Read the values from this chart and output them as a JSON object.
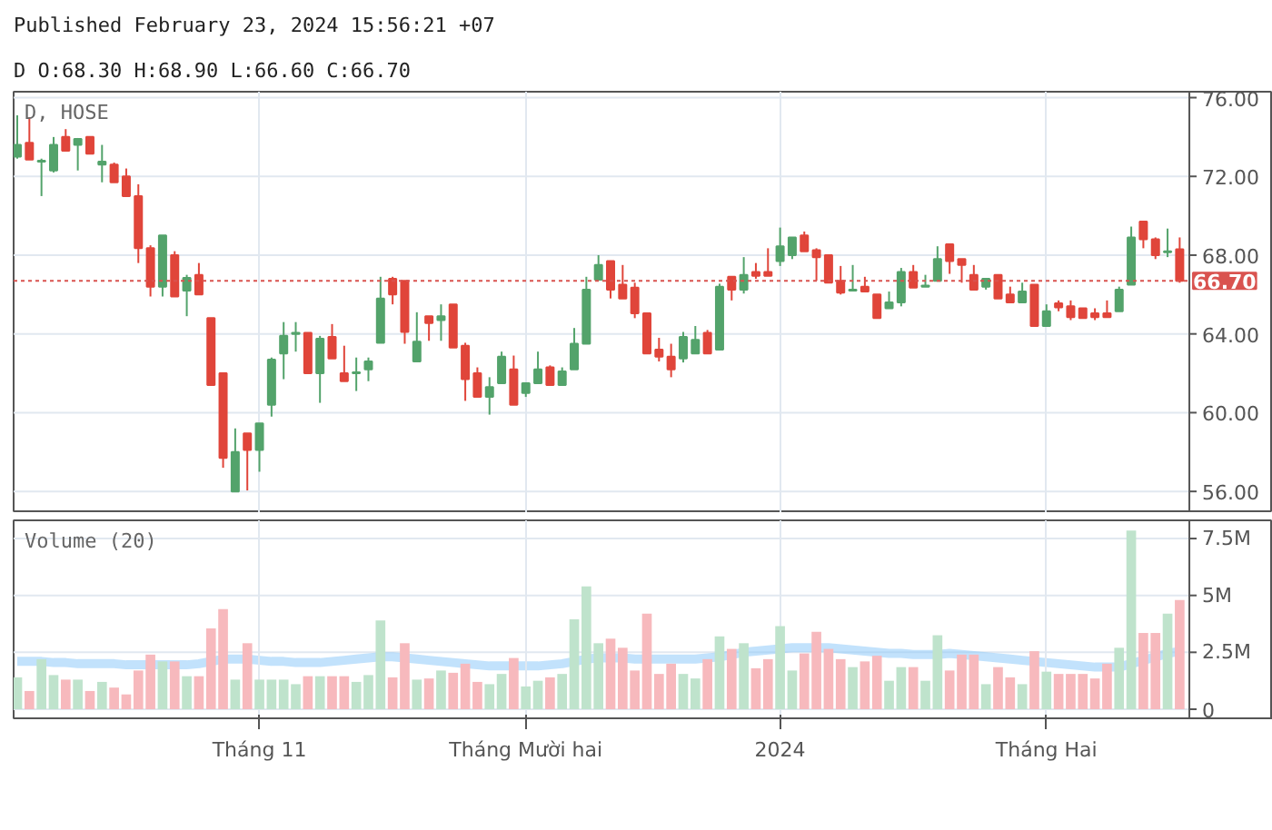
{
  "chart_data": [
    {
      "type": "candlestick",
      "title": "Published February 23, 2024 15:56:21 +07",
      "subtitle": "D O:68.30 H:68.90 L:66.60 C:66.70",
      "annotations": [
        "D, HOSE"
      ],
      "categories": [
        null,
        null,
        null,
        null,
        null,
        null,
        null,
        null,
        null,
        null,
        null,
        null,
        null,
        null,
        null,
        null,
        null,
        null,
        null,
        null,
        "Tháng 11",
        null,
        null,
        null,
        null,
        null,
        null,
        null,
        null,
        null,
        null,
        null,
        null,
        null,
        null,
        null,
        null,
        null,
        null,
        null,
        null,
        null,
        "Tháng Mười hai",
        null,
        null,
        null,
        null,
        null,
        null,
        null,
        null,
        null,
        null,
        null,
        null,
        null,
        null,
        null,
        null,
        null,
        null,
        null,
        null,
        "2024",
        null,
        null,
        null,
        null,
        null,
        null,
        null,
        null,
        null,
        null,
        null,
        null,
        null,
        null,
        null,
        null,
        null,
        null,
        null,
        null,
        null,
        "Tháng Hai",
        null,
        null,
        null,
        null,
        null,
        null,
        null,
        null,
        null,
        null,
        null
      ],
      "ohlc": [
        [
          73.0,
          75.1,
          72.9,
          73.6
        ],
        [
          73.7,
          75.0,
          72.85,
          72.85
        ],
        [
          72.75,
          72.9,
          71.0,
          72.8
        ],
        [
          72.3,
          74.0,
          72.2,
          73.6
        ],
        [
          74.0,
          74.4,
          73.3,
          73.3
        ],
        [
          73.6,
          73.95,
          72.3,
          73.9
        ],
        [
          74.0,
          74.0,
          73.15,
          73.15
        ],
        [
          72.6,
          73.6,
          71.7,
          72.75
        ],
        [
          72.6,
          72.7,
          71.7,
          71.7
        ],
        [
          72.0,
          72.4,
          71.0,
          71.0
        ],
        [
          71.0,
          71.6,
          67.6,
          68.35
        ],
        [
          68.35,
          68.5,
          65.9,
          66.4
        ],
        [
          66.4,
          69.0,
          65.9,
          69.0
        ],
        [
          68.0,
          68.2,
          65.9,
          65.9
        ],
        [
          66.2,
          67.0,
          64.9,
          66.85
        ],
        [
          67.0,
          67.6,
          66.0,
          66.0
        ],
        [
          64.8,
          64.8,
          61.4,
          61.4
        ],
        [
          62.0,
          62.0,
          57.2,
          57.7
        ],
        [
          56.0,
          59.2,
          56.0,
          58.0
        ],
        [
          58.95,
          58.95,
          56.05,
          58.1
        ],
        [
          58.1,
          59.45,
          57.0,
          59.45
        ],
        [
          60.4,
          62.8,
          59.8,
          62.7
        ],
        [
          63.0,
          64.6,
          61.7,
          63.9
        ],
        [
          64.0,
          64.6,
          63.1,
          64.05
        ],
        [
          64.05,
          64.05,
          62.0,
          62.0
        ],
        [
          62.0,
          63.9,
          60.5,
          63.75
        ],
        [
          63.85,
          64.5,
          62.75,
          62.75
        ],
        [
          62.0,
          63.4,
          61.6,
          61.6
        ],
        [
          62.0,
          62.8,
          61.1,
          62.05
        ],
        [
          62.2,
          62.8,
          61.6,
          62.6
        ],
        [
          63.55,
          66.9,
          63.55,
          65.8
        ],
        [
          66.8,
          66.9,
          65.5,
          66.0
        ],
        [
          66.7,
          66.7,
          63.5,
          64.1
        ],
        [
          62.6,
          65.1,
          62.6,
          63.6
        ],
        [
          64.9,
          64.9,
          63.65,
          64.55
        ],
        [
          64.7,
          65.5,
          63.65,
          64.9
        ],
        [
          65.5,
          65.5,
          63.3,
          63.3
        ],
        [
          63.4,
          63.55,
          60.6,
          61.7
        ],
        [
          62.0,
          62.3,
          60.8,
          60.8
        ],
        [
          60.8,
          61.8,
          59.9,
          61.3
        ],
        [
          61.5,
          63.1,
          61.5,
          62.85
        ],
        [
          62.2,
          62.9,
          60.4,
          60.4
        ],
        [
          61.0,
          61.5,
          60.8,
          61.5
        ],
        [
          61.5,
          63.1,
          61.5,
          62.2
        ],
        [
          62.3,
          62.4,
          61.4,
          61.4
        ],
        [
          61.4,
          62.3,
          61.4,
          62.1
        ],
        [
          62.2,
          64.3,
          62.2,
          63.5
        ],
        [
          63.5,
          66.9,
          63.5,
          66.25
        ],
        [
          66.75,
          68.0,
          66.75,
          67.5
        ],
        [
          67.7,
          67.7,
          65.8,
          66.25
        ],
        [
          66.5,
          67.5,
          65.8,
          65.8
        ],
        [
          66.35,
          66.6,
          64.8,
          65.05
        ],
        [
          65.05,
          65.05,
          63.0,
          63.0
        ],
        [
          63.2,
          63.8,
          62.6,
          62.85
        ],
        [
          62.85,
          63.5,
          61.8,
          62.2
        ],
        [
          62.75,
          64.1,
          62.55,
          63.85
        ],
        [
          63.0,
          64.4,
          63.0,
          63.7
        ],
        [
          64.05,
          64.2,
          63.0,
          63.0
        ],
        [
          63.2,
          66.55,
          63.2,
          66.4
        ],
        [
          66.9,
          66.9,
          65.7,
          66.25
        ],
        [
          66.25,
          67.9,
          66.05,
          67.0
        ],
        [
          67.15,
          67.6,
          66.8,
          66.95
        ],
        [
          67.15,
          68.35,
          66.95,
          66.95
        ],
        [
          67.7,
          69.4,
          67.45,
          68.45
        ],
        [
          68.0,
          68.9,
          67.8,
          68.9
        ],
        [
          69.0,
          69.2,
          68.2,
          68.2
        ],
        [
          68.25,
          68.35,
          66.7,
          67.9
        ],
        [
          68.0,
          68.0,
          66.6,
          66.6
        ],
        [
          66.7,
          67.45,
          66.0,
          66.1
        ],
        [
          66.2,
          67.5,
          66.2,
          66.25
        ],
        [
          66.4,
          66.9,
          66.15,
          66.15
        ],
        [
          66.0,
          66.0,
          64.8,
          64.8
        ],
        [
          65.3,
          66.15,
          65.3,
          65.6
        ],
        [
          65.6,
          67.35,
          65.4,
          67.15
        ],
        [
          67.15,
          67.5,
          66.35,
          66.35
        ],
        [
          66.4,
          67.0,
          66.4,
          66.45
        ],
        [
          66.7,
          68.45,
          66.7,
          67.8
        ],
        [
          68.55,
          68.55,
          67.05,
          67.7
        ],
        [
          67.8,
          67.8,
          66.6,
          67.5
        ],
        [
          67.0,
          67.5,
          66.25,
          66.25
        ],
        [
          66.4,
          66.8,
          66.25,
          66.8
        ],
        [
          67.0,
          67.0,
          65.8,
          65.8
        ],
        [
          66.0,
          66.4,
          65.6,
          65.6
        ],
        [
          65.6,
          66.6,
          65.6,
          66.15
        ],
        [
          66.5,
          66.5,
          64.4,
          64.4
        ],
        [
          64.4,
          65.5,
          64.4,
          65.15
        ],
        [
          65.55,
          65.7,
          65.15,
          65.35
        ],
        [
          65.4,
          65.7,
          64.7,
          64.85
        ],
        [
          65.3,
          65.3,
          64.8,
          64.8
        ],
        [
          65.05,
          65.3,
          64.7,
          64.85
        ],
        [
          65.05,
          65.7,
          64.85,
          64.85
        ],
        [
          65.15,
          66.4,
          65.15,
          66.25
        ],
        [
          66.5,
          69.45,
          66.5,
          68.9
        ],
        [
          69.7,
          69.7,
          68.35,
          68.8
        ],
        [
          68.8,
          68.9,
          67.8,
          68.0
        ],
        [
          68.15,
          69.35,
          67.9,
          68.2
        ],
        [
          68.3,
          68.9,
          66.6,
          66.7
        ]
      ],
      "colors": [
        "#53a36b",
        "#e0453a",
        "#53a36b",
        "#53a36b",
        "#e0453a",
        "#53a36b",
        "#e0453a",
        "#53a36b",
        "#e0453a",
        "#e0453a",
        "#e0453a",
        "#e0453a",
        "#53a36b",
        "#e0453a",
        "#53a36b",
        "#e0453a",
        "#e0453a",
        "#e0453a",
        "#53a36b",
        "#e0453a",
        "#53a36b",
        "#53a36b",
        "#53a36b",
        "#53a36b",
        "#e0453a",
        "#53a36b",
        "#e0453a",
        "#e0453a",
        "#53a36b",
        "#53a36b",
        "#53a36b",
        "#e0453a",
        "#e0453a",
        "#53a36b",
        "#e0453a",
        "#53a36b",
        "#e0453a",
        "#e0453a",
        "#e0453a",
        "#53a36b",
        "#53a36b",
        "#e0453a",
        "#53a36b",
        "#53a36b",
        "#e0453a",
        "#53a36b",
        "#53a36b",
        "#53a36b",
        "#53a36b",
        "#e0453a",
        "#e0453a",
        "#e0453a",
        "#e0453a",
        "#e0453a",
        "#e0453a",
        "#53a36b",
        "#53a36b",
        "#e0453a",
        "#53a36b",
        "#e0453a",
        "#53a36b",
        "#e0453a",
        "#e0453a",
        "#53a36b",
        "#53a36b",
        "#e0453a",
        "#e0453a",
        "#e0453a",
        "#e0453a",
        "#53a36b",
        "#e0453a",
        "#e0453a",
        "#53a36b",
        "#53a36b",
        "#e0453a",
        "#53a36b",
        "#53a36b",
        "#e0453a",
        "#e0453a",
        "#e0453a",
        "#53a36b",
        "#e0453a",
        "#e0453a",
        "#53a36b",
        "#e0453a",
        "#53a36b",
        "#e0453a",
        "#e0453a",
        "#e0453a",
        "#e0453a",
        "#e0453a",
        "#53a36b",
        "#53a36b",
        "#e0453a",
        "#e0453a",
        "#53a36b",
        "#e0453a"
      ],
      "ylim": [
        54.9,
        76.3
      ],
      "yticks": [
        {
          "value": 56,
          "label": "56.00"
        },
        {
          "value": 60,
          "label": "60.00"
        },
        {
          "value": 64,
          "label": "64.00"
        },
        {
          "value": 68,
          "label": "68.00"
        },
        {
          "value": 72,
          "label": "72.00"
        },
        {
          "value": 76,
          "label": "76.00"
        }
      ],
      "ref_lines": [
        {
          "axis": "y",
          "value": 66.7,
          "label": "66.70",
          "color": "#d9534f",
          "line_style": "dotted"
        }
      ],
      "grid": true,
      "tick_labels": "y"
    },
    {
      "type": "bar",
      "annotations": [
        "Volume (20)"
      ],
      "categories": [
        null,
        null,
        null,
        null,
        null,
        null,
        null,
        null,
        null,
        null,
        null,
        null,
        null,
        null,
        null,
        null,
        null,
        null,
        null,
        null,
        "Tháng 11",
        null,
        null,
        null,
        null,
        null,
        null,
        null,
        null,
        null,
        null,
        null,
        null,
        null,
        null,
        null,
        null,
        null,
        null,
        null,
        null,
        null,
        "Tháng Mười hai",
        null,
        null,
        null,
        null,
        null,
        null,
        null,
        null,
        null,
        null,
        null,
        null,
        null,
        null,
        null,
        null,
        null,
        null,
        null,
        null,
        "2024",
        null,
        null,
        null,
        null,
        null,
        null,
        null,
        null,
        null,
        null,
        null,
        null,
        null,
        null,
        null,
        null,
        null,
        null,
        null,
        null,
        null,
        "Tháng Hai",
        null,
        null,
        null,
        null,
        null,
        null,
        null,
        null,
        null,
        null,
        null
      ],
      "series": [
        {
          "type": "bar",
          "values": [
            1.4,
            0.8,
            2.2,
            1.5,
            1.3,
            1.3,
            0.8,
            1.2,
            0.95,
            0.65,
            1.7,
            2.4,
            2.1,
            2.1,
            1.45,
            1.45,
            3.55,
            4.4,
            1.3,
            2.9,
            1.3,
            1.3,
            1.3,
            1.1,
            1.45,
            1.45,
            1.45,
            1.45,
            1.2,
            1.5,
            3.9,
            1.4,
            2.9,
            1.3,
            1.35,
            1.7,
            1.6,
            2.0,
            1.2,
            1.1,
            1.55,
            2.25,
            1.0,
            1.25,
            1.4,
            1.55,
            3.95,
            5.4,
            2.9,
            3.1,
            2.7,
            1.7,
            4.2,
            1.55,
            2.0,
            1.55,
            1.35,
            2.2,
            3.2,
            2.65,
            2.9,
            1.8,
            2.2,
            3.65,
            1.7,
            2.45,
            3.4,
            2.65,
            2.2,
            1.85,
            2.1,
            2.35,
            1.25,
            1.85,
            1.85,
            1.25,
            3.25,
            1.7,
            2.4,
            2.4,
            1.1,
            1.85,
            1.4,
            1.1,
            2.55,
            1.65,
            1.55,
            1.55,
            1.55,
            1.35,
            2.0,
            2.7,
            7.85,
            3.35,
            3.35,
            4.2,
            4.8
          ],
          "colors": [
            "#bfe3cc",
            "#f7b9bd",
            "#bfe3cc",
            "#bfe3cc",
            "#f7b9bd",
            "#bfe3cc",
            "#f7b9bd",
            "#bfe3cc",
            "#f7b9bd",
            "#f7b9bd",
            "#f7b9bd",
            "#f7b9bd",
            "#bfe3cc",
            "#f7b9bd",
            "#bfe3cc",
            "#f7b9bd",
            "#f7b9bd",
            "#f7b9bd",
            "#bfe3cc",
            "#f7b9bd",
            "#bfe3cc",
            "#bfe3cc",
            "#bfe3cc",
            "#bfe3cc",
            "#f7b9bd",
            "#bfe3cc",
            "#f7b9bd",
            "#f7b9bd",
            "#bfe3cc",
            "#bfe3cc",
            "#bfe3cc",
            "#f7b9bd",
            "#f7b9bd",
            "#bfe3cc",
            "#f7b9bd",
            "#bfe3cc",
            "#f7b9bd",
            "#f7b9bd",
            "#f7b9bd",
            "#bfe3cc",
            "#bfe3cc",
            "#f7b9bd",
            "#bfe3cc",
            "#bfe3cc",
            "#f7b9bd",
            "#bfe3cc",
            "#bfe3cc",
            "#bfe3cc",
            "#bfe3cc",
            "#f7b9bd",
            "#f7b9bd",
            "#f7b9bd",
            "#f7b9bd",
            "#f7b9bd",
            "#f7b9bd",
            "#bfe3cc",
            "#bfe3cc",
            "#f7b9bd",
            "#bfe3cc",
            "#f7b9bd",
            "#bfe3cc",
            "#f7b9bd",
            "#f7b9bd",
            "#bfe3cc",
            "#bfe3cc",
            "#f7b9bd",
            "#f7b9bd",
            "#f7b9bd",
            "#f7b9bd",
            "#bfe3cc",
            "#f7b9bd",
            "#f7b9bd",
            "#bfe3cc",
            "#bfe3cc",
            "#f7b9bd",
            "#bfe3cc",
            "#bfe3cc",
            "#f7b9bd",
            "#f7b9bd",
            "#f7b9bd",
            "#bfe3cc",
            "#f7b9bd",
            "#f7b9bd",
            "#bfe3cc",
            "#f7b9bd",
            "#bfe3cc",
            "#f7b9bd",
            "#f7b9bd",
            "#f7b9bd",
            "#f7b9bd",
            "#f7b9bd",
            "#bfe3cc",
            "#bfe3cc",
            "#f7b9bd",
            "#f7b9bd",
            "#bfe3cc",
            "#f7b9bd"
          ]
        },
        {
          "type": "line",
          "color": "#90caf9",
          "values": [
            2.1,
            2.1,
            2.1,
            2.05,
            2.05,
            2.0,
            2.0,
            2.0,
            2.0,
            1.95,
            1.95,
            1.95,
            1.95,
            1.95,
            1.95,
            2.0,
            2.1,
            2.2,
            2.2,
            2.2,
            2.15,
            2.1,
            2.1,
            2.05,
            2.05,
            2.05,
            2.1,
            2.15,
            2.2,
            2.25,
            2.3,
            2.3,
            2.25,
            2.2,
            2.15,
            2.1,
            2.05,
            2.0,
            1.95,
            1.9,
            1.9,
            1.9,
            1.9,
            1.9,
            1.95,
            2.0,
            2.1,
            2.2,
            2.25,
            2.25,
            2.25,
            2.2,
            2.2,
            2.2,
            2.2,
            2.2,
            2.2,
            2.25,
            2.3,
            2.4,
            2.5,
            2.55,
            2.6,
            2.65,
            2.7,
            2.7,
            2.7,
            2.7,
            2.65,
            2.6,
            2.55,
            2.5,
            2.45,
            2.45,
            2.4,
            2.4,
            2.4,
            2.45,
            2.4,
            2.35,
            2.3,
            2.25,
            2.2,
            2.15,
            2.1,
            2.05,
            2.0,
            1.95,
            1.9,
            1.85,
            1.85,
            1.85,
            2.0,
            2.15,
            2.3,
            2.45,
            2.55
          ]
        }
      ],
      "ylim": [
        -0.4,
        8.3
      ],
      "yticks": [
        0,
        {
          "value": 2.5,
          "label": "2.5M"
        },
        {
          "value": 5,
          "label": "5M"
        },
        {
          "value": 7.5,
          "label": "7.5M"
        }
      ],
      "grid": true
    }
  ]
}
